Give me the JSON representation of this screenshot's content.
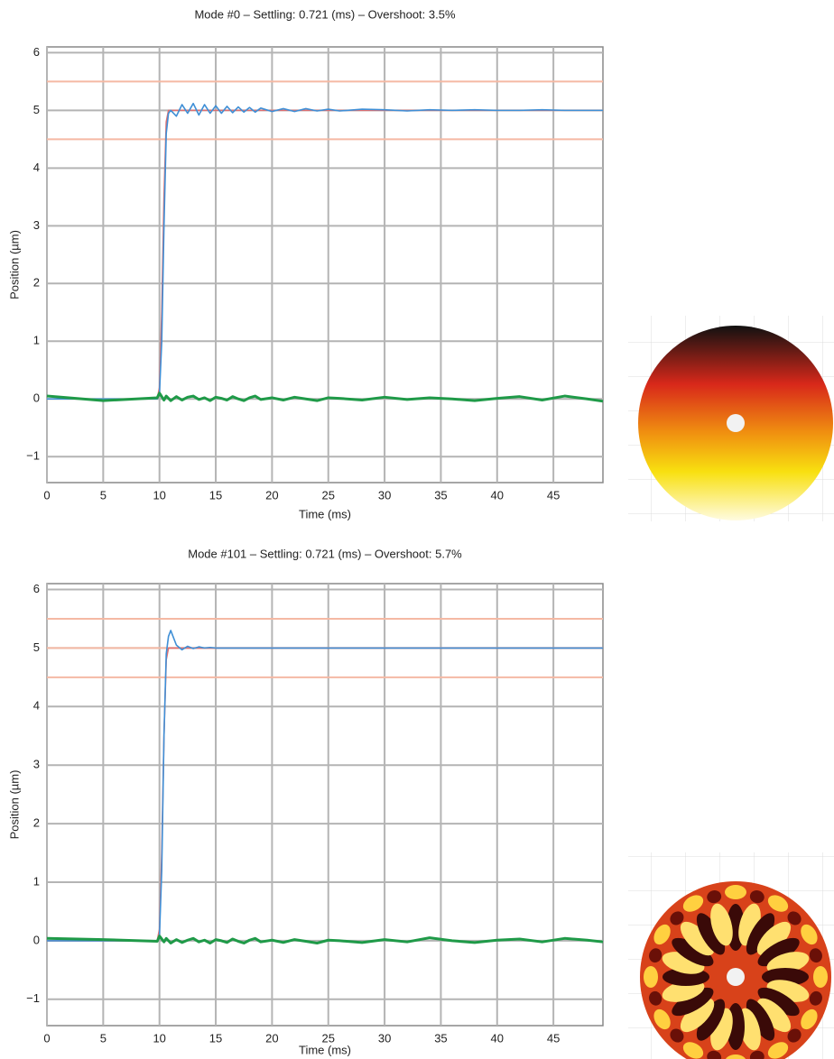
{
  "chart_data": [
    {
      "type": "line",
      "title": "Mode #0 – Settling: 0.721 (ms) – Overshoot: 3.5%",
      "xlabel": "Time (ms)",
      "ylabel": "Position (µm)",
      "xlim": [
        0,
        49.4
      ],
      "ylim": [
        -1.45,
        6.1
      ],
      "xticks": [
        0,
        5,
        10,
        15,
        20,
        25,
        30,
        35,
        40,
        45
      ],
      "yticks": [
        {
          "value": -1,
          "label": "−1"
        },
        0,
        1,
        2,
        3,
        4,
        5,
        6
      ],
      "grid": true,
      "reference_lines": [
        4.5,
        5.5
      ],
      "reference_color": "#f5b9a4",
      "x": [
        0,
        5,
        9.8,
        10,
        10.2,
        10.4,
        10.6,
        10.8,
        11,
        11.5,
        12,
        12.5,
        13,
        13.5,
        14,
        14.5,
        15,
        15.5,
        16,
        16.5,
        17,
        17.5,
        18,
        18.5,
        19,
        20,
        21,
        22,
        23,
        24,
        25,
        26,
        28,
        30,
        32,
        34,
        36,
        38,
        40,
        42,
        44,
        46,
        48,
        49.4
      ],
      "series": [
        {
          "color": "#e07070",
          "values": [
            0,
            0,
            0,
            0.2,
            1.5,
            3.5,
            4.8,
            5,
            5,
            5,
            5,
            5,
            5,
            5,
            5,
            5,
            5,
            5,
            5,
            5,
            5,
            5,
            5,
            5,
            5,
            5,
            5,
            5,
            5,
            5,
            5,
            5,
            5,
            5,
            5,
            5,
            5,
            5,
            5,
            5,
            5,
            5,
            5,
            5
          ]
        },
        {
          "color": "#3f8fd6",
          "values": [
            0,
            0,
            0,
            0.1,
            1,
            3,
            4.6,
            4.95,
            5,
            4.9,
            5.1,
            4.95,
            5.12,
            4.92,
            5.1,
            4.95,
            5.08,
            4.95,
            5.07,
            4.96,
            5.06,
            4.97,
            5.05,
            4.97,
            5.04,
            4.98,
            5.03,
            4.98,
            5.03,
            4.99,
            5.02,
            4.99,
            5.02,
            5.01,
            4.99,
            5.01,
            5,
            5.01,
            5,
            5,
            5.01,
            5,
            5,
            5
          ]
        },
        {
          "color": "#1f9a48",
          "values": [
            0.05,
            -0.03,
            0.02,
            0.1,
            0.04,
            -0.02,
            0.05,
            0.01,
            -0.03,
            0.04,
            -0.02,
            0.03,
            0.05,
            -0.01,
            0.02,
            -0.03,
            0.03,
            0.01,
            -0.02,
            0.04,
            0,
            -0.03,
            0.02,
            0.05,
            -0.01,
            0.02,
            -0.02,
            0.03,
            0,
            -0.03,
            0.02,
            0.01,
            -0.02,
            0.03,
            -0.01,
            0.02,
            0,
            -0.03,
            0.01,
            0.04,
            -0.02,
            0.05,
            0,
            -0.04
          ]
        }
      ]
    },
    {
      "type": "line",
      "title": "Mode #101 – Settling: 0.721 (ms) – Overshoot: 5.7%",
      "xlabel": "Time (ms)",
      "ylabel": "Position (µm)",
      "xlim": [
        0,
        49.4
      ],
      "ylim": [
        -1.45,
        6.1
      ],
      "xticks": [
        0,
        5,
        10,
        15,
        20,
        25,
        30,
        35,
        40,
        45
      ],
      "yticks": [
        {
          "value": -1,
          "label": "−1"
        },
        0,
        1,
        2,
        3,
        4,
        5,
        6
      ],
      "grid": true,
      "reference_lines": [
        4.5,
        5,
        5.5
      ],
      "reference_color": "#f5b9a4",
      "x": [
        0,
        5,
        9.8,
        10,
        10.2,
        10.4,
        10.6,
        10.8,
        11,
        11.5,
        12,
        12.5,
        13,
        13.5,
        14,
        14.5,
        15,
        15.5,
        16,
        16.5,
        17,
        17.5,
        18,
        18.5,
        19,
        20,
        21,
        22,
        23,
        24,
        25,
        26,
        28,
        30,
        32,
        34,
        36,
        38,
        40,
        42,
        44,
        46,
        48,
        49.4
      ],
      "series": [
        {
          "color": "#e07070",
          "values": [
            0,
            0,
            0,
            0.2,
            1.5,
            3.5,
            4.8,
            5,
            5,
            5,
            5,
            5,
            5,
            5,
            5,
            5,
            5,
            5,
            5,
            5,
            5,
            5,
            5,
            5,
            5,
            5,
            5,
            5,
            5,
            5,
            5,
            5,
            5,
            5,
            5,
            5,
            5,
            5,
            5,
            5,
            5,
            5,
            5,
            5
          ]
        },
        {
          "color": "#3f8fd6",
          "values": [
            0,
            0,
            0,
            0.1,
            1.2,
            3.5,
            4.9,
            5.2,
            5.3,
            5.05,
            4.97,
            5.03,
            4.99,
            5.02,
            5,
            5.01,
            5,
            5,
            5,
            5,
            5,
            5,
            5,
            5,
            5,
            5,
            5,
            5,
            5,
            5,
            5,
            5,
            5,
            5,
            5,
            5,
            5,
            5,
            5,
            5,
            5,
            5,
            5,
            5
          ]
        },
        {
          "color": "#1f9a48",
          "values": [
            0.04,
            0.02,
            -0.01,
            0.08,
            0.03,
            -0.02,
            0.04,
            0,
            -0.04,
            0.02,
            -0.03,
            0.01,
            0.04,
            -0.02,
            0.01,
            -0.04,
            0.02,
            0,
            -0.03,
            0.03,
            -0.01,
            -0.04,
            0.01,
            0.04,
            -0.02,
            0.01,
            -0.03,
            0.02,
            -0.01,
            -0.04,
            0.01,
            0,
            -0.03,
            0.02,
            -0.02,
            0.05,
            0,
            -0.03,
            0.01,
            0.03,
            -0.02,
            0.04,
            0.01,
            -0.02
          ]
        }
      ]
    }
  ]
}
